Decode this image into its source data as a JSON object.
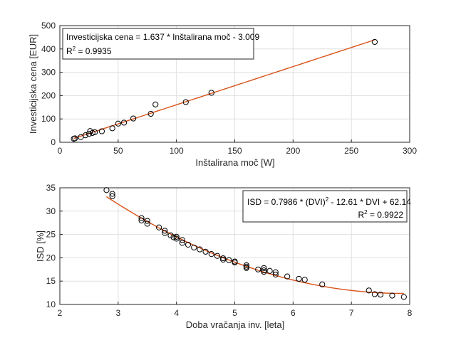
{
  "colors": {
    "fit": "#d95319",
    "marker": "#000000",
    "axis": "#262626",
    "grid": "#e0e0e0"
  },
  "chart_data": [
    {
      "type": "scatter",
      "grid": true,
      "xlabel": "Inštalirana moč [W]",
      "ylabel": "Investicijska cena [EUR]",
      "xlim": [
        0,
        300
      ],
      "ylim": [
        0,
        500
      ],
      "xticks": [
        0,
        50,
        100,
        150,
        200,
        250,
        300
      ],
      "yticks": [
        0,
        100,
        200,
        300,
        400,
        500
      ],
      "annotation": {
        "line1": "Investicijska cena = 1.637 * Inštalirana moč - 3.009",
        "r2_base": "R",
        "r2_sup": "2",
        "r2_rest": " = 0.9935",
        "placement": "top-left"
      },
      "fit": {
        "type": "linear",
        "slope": 1.637,
        "intercept": -3.009,
        "x_range": [
          12,
          270
        ]
      },
      "series": [
        {
          "points": [
            [
              12,
              15
            ],
            [
              13,
              17
            ],
            [
              18,
              22
            ],
            [
              22,
              30
            ],
            [
              25,
              36
            ],
            [
              26,
              48
            ],
            [
              28,
              40
            ],
            [
              30,
              43
            ],
            [
              36,
              47
            ],
            [
              45,
              60
            ],
            [
              50,
              80
            ],
            [
              55,
              84
            ],
            [
              63,
              102
            ],
            [
              78,
              122
            ],
            [
              82,
              162
            ],
            [
              108,
              172
            ],
            [
              130,
              212
            ],
            [
              270,
              430
            ]
          ]
        }
      ]
    },
    {
      "type": "scatter",
      "grid": true,
      "xlabel": "Doba vračanja inv. [leta]",
      "ylabel": "ISD [%]",
      "xlim": [
        2,
        8
      ],
      "ylim": [
        10,
        35
      ],
      "xticks": [
        2,
        3,
        4,
        5,
        6,
        7,
        8
      ],
      "yticks": [
        10,
        15,
        20,
        25,
        30,
        35
      ],
      "annotation": {
        "line1_a": "ISD = 0.7986 * (DVI)",
        "line1_sup": "2",
        "line1_b": " - 12.61 * DVI + 62.14",
        "r2_base": "R",
        "r2_sup": "2",
        "r2_rest": " = 0.9922",
        "placement": "top-right"
      },
      "fit": {
        "type": "quadratic",
        "a": 0.7986,
        "b": -12.61,
        "c": 62.14,
        "x_range": [
          2.8,
          7.9
        ]
      },
      "series": [
        {
          "points": [
            [
              2.8,
              34.5
            ],
            [
              2.9,
              33.7
            ],
            [
              2.9,
              33.2
            ],
            [
              3.4,
              28.5
            ],
            [
              3.4,
              28.0
            ],
            [
              3.5,
              27.9
            ],
            [
              3.5,
              27.3
            ],
            [
              3.7,
              26.5
            ],
            [
              3.8,
              25.8
            ],
            [
              3.8,
              25.3
            ],
            [
              3.9,
              24.8
            ],
            [
              3.95,
              24.4
            ],
            [
              4.0,
              24.5
            ],
            [
              4.0,
              24.1
            ],
            [
              4.1,
              23.8
            ],
            [
              4.1,
              23.2
            ],
            [
              4.2,
              22.8
            ],
            [
              4.3,
              22.2
            ],
            [
              4.4,
              21.8
            ],
            [
              4.5,
              21.3
            ],
            [
              4.6,
              20.8
            ],
            [
              4.7,
              20.4
            ],
            [
              4.8,
              19.9
            ],
            [
              4.8,
              19.6
            ],
            [
              4.9,
              19.5
            ],
            [
              5.0,
              19.2
            ],
            [
              5.0,
              19.0
            ],
            [
              5.2,
              18.4
            ],
            [
              5.2,
              18.1
            ],
            [
              5.2,
              17.8
            ],
            [
              5.4,
              17.5
            ],
            [
              5.5,
              17.8
            ],
            [
              5.5,
              17.3
            ],
            [
              5.5,
              17.0
            ],
            [
              5.6,
              17.2
            ],
            [
              5.7,
              16.9
            ],
            [
              5.7,
              16.4
            ],
            [
              5.9,
              16.0
            ],
            [
              6.1,
              15.5
            ],
            [
              6.2,
              15.3
            ],
            [
              6.5,
              14.3
            ],
            [
              7.3,
              13.0
            ],
            [
              7.4,
              12.2
            ],
            [
              7.5,
              12.1
            ],
            [
              7.7,
              11.9
            ],
            [
              7.9,
              11.6
            ]
          ]
        }
      ]
    }
  ]
}
